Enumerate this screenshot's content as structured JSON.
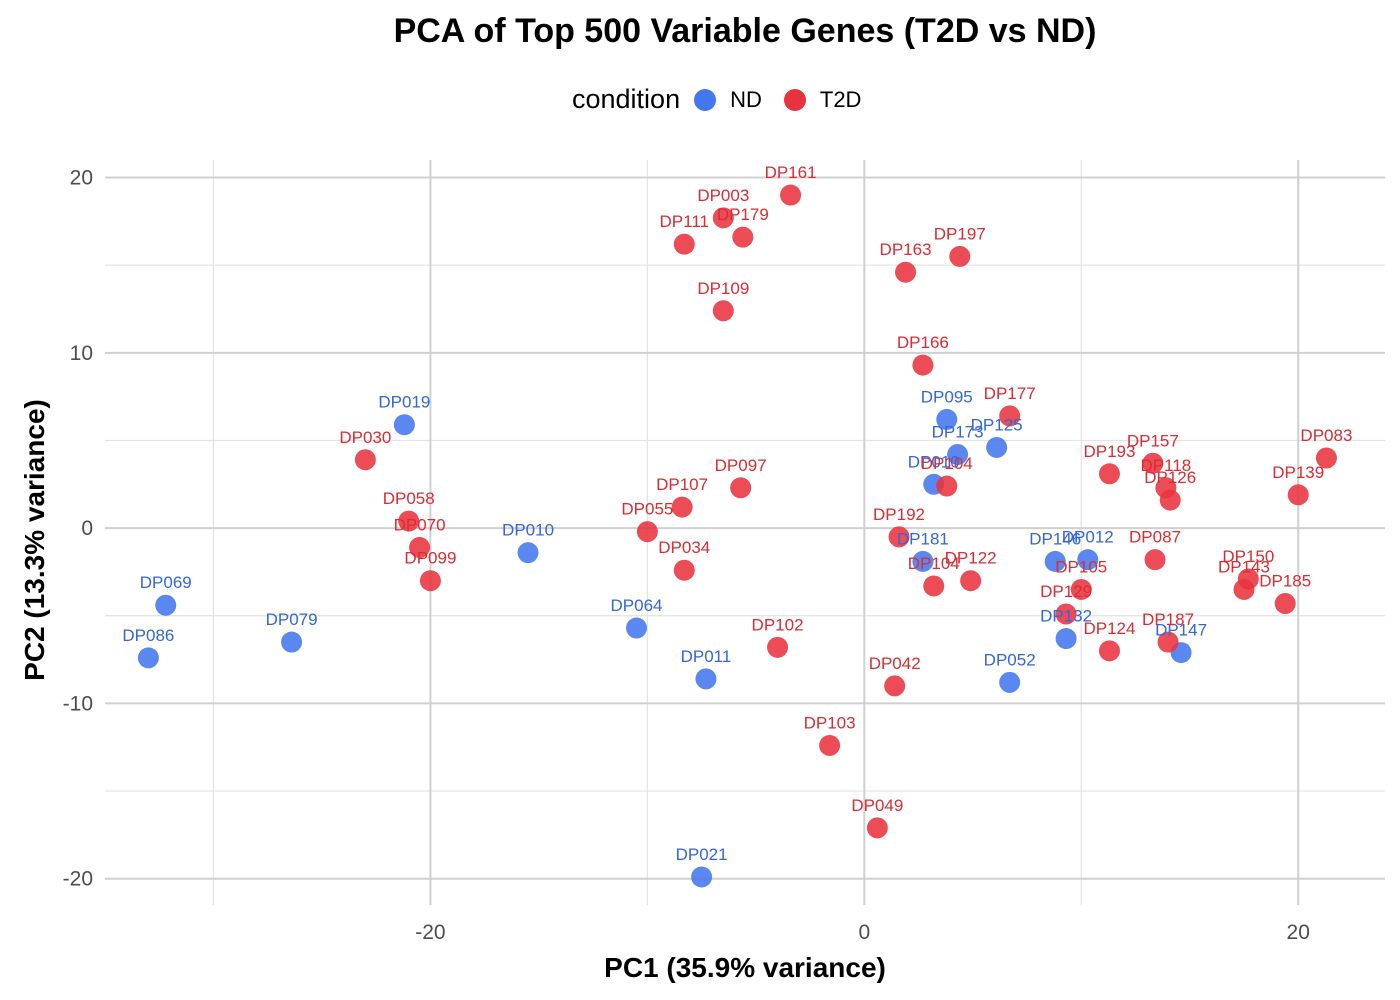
{
  "chart_data": {
    "type": "scatter",
    "title": "PCA of Top 500 Variable Genes (T2D vs ND)",
    "xlabel": "PC1 (35.9% variance)",
    "ylabel": "PC2 (13.3% variance)",
    "xlim": [
      -35.0,
      24.0
    ],
    "ylim": [
      -21.5,
      21.0
    ],
    "xticks": [
      -20,
      0,
      20
    ],
    "xtick_labels": [
      "-20",
      "0",
      "20"
    ],
    "yticks": [
      -20,
      -10,
      0,
      10,
      20
    ],
    "ytick_labels": [
      "-20",
      "-10",
      "0",
      "10",
      "20"
    ],
    "grid": true,
    "legend": {
      "title": "condition",
      "position": "top"
    },
    "colors": {
      "ND": "#4477EE",
      "T2D": "#E8333F",
      "ND_label": "#3366DD",
      "T2D_label": "#DD2B33"
    },
    "series": [
      {
        "name": "ND",
        "points": [
          {
            "label": "DP086",
            "x": -33.0,
            "y": -7.4
          },
          {
            "label": "DP069",
            "x": -32.2,
            "y": -4.4
          },
          {
            "label": "DP079",
            "x": -26.4,
            "y": -6.5
          },
          {
            "label": "DP019",
            "x": -21.2,
            "y": 5.9
          },
          {
            "label": "DP010",
            "x": -15.5,
            "y": -1.4
          },
          {
            "label": "DP064",
            "x": -10.5,
            "y": -5.7
          },
          {
            "label": "DP011",
            "x": -7.3,
            "y": -8.6
          },
          {
            "label": "DP021",
            "x": -7.5,
            "y": -19.9
          },
          {
            "label": "DP095",
            "x": 3.8,
            "y": 6.2
          },
          {
            "label": "DP173",
            "x": 4.3,
            "y": 4.2
          },
          {
            "label": "DP125",
            "x": 6.1,
            "y": 4.6
          },
          {
            "label": "DP010",
            "x": 3.2,
            "y": 2.5
          },
          {
            "label": "DP181",
            "x": 2.7,
            "y": -1.9
          },
          {
            "label": "DP146",
            "x": 8.8,
            "y": -1.9
          },
          {
            "label": "DP012",
            "x": 10.3,
            "y": -1.8
          },
          {
            "label": "DP052",
            "x": 6.7,
            "y": -8.8
          },
          {
            "label": "DP132",
            "x": 9.3,
            "y": -6.3
          },
          {
            "label": "DP147",
            "x": 14.6,
            "y": -7.1
          }
        ]
      },
      {
        "name": "T2D",
        "points": [
          {
            "label": "DP030",
            "x": -23.0,
            "y": 3.9
          },
          {
            "label": "DP058",
            "x": -21.0,
            "y": 0.4
          },
          {
            "label": "DP070",
            "x": -20.5,
            "y": -1.1
          },
          {
            "label": "DP099",
            "x": -20.0,
            "y": -3.0
          },
          {
            "label": "DP055",
            "x": -10.0,
            "y": -0.2
          },
          {
            "label": "DP107",
            "x": -8.4,
            "y": 1.2
          },
          {
            "label": "DP034",
            "x": -8.3,
            "y": -2.4
          },
          {
            "label": "DP097",
            "x": -5.7,
            "y": 2.3
          },
          {
            "label": "DP003",
            "x": -6.5,
            "y": 17.7
          },
          {
            "label": "DP111",
            "x": -8.3,
            "y": 16.2
          },
          {
            "label": "DP179",
            "x": -5.6,
            "y": 16.6
          },
          {
            "label": "DP161",
            "x": -3.4,
            "y": 19.0
          },
          {
            "label": "DP109",
            "x": -6.5,
            "y": 12.4
          },
          {
            "label": "DP163",
            "x": 1.9,
            "y": 14.6
          },
          {
            "label": "DP197",
            "x": 4.4,
            "y": 15.5
          },
          {
            "label": "DP166",
            "x": 2.7,
            "y": 9.3
          },
          {
            "label": "DP177",
            "x": 6.7,
            "y": 6.4
          },
          {
            "label": "DP104",
            "x": 3.8,
            "y": 2.4
          },
          {
            "label": "DP192",
            "x": 1.6,
            "y": -0.5
          },
          {
            "label": "DP104",
            "x": 3.2,
            "y": -3.3
          },
          {
            "label": "DP122",
            "x": 4.9,
            "y": -3.0
          },
          {
            "label": "DP102",
            "x": -4.0,
            "y": -6.8
          },
          {
            "label": "DP042",
            "x": 1.4,
            "y": -9.0
          },
          {
            "label": "DP103",
            "x": -1.6,
            "y": -12.4
          },
          {
            "label": "DP049",
            "x": 0.6,
            "y": -17.1
          },
          {
            "label": "DP105",
            "x": 10.0,
            "y": -3.5
          },
          {
            "label": "DP129",
            "x": 9.3,
            "y": -4.9
          },
          {
            "label": "DP124",
            "x": 11.3,
            "y": -7.0
          },
          {
            "label": "DP193",
            "x": 11.3,
            "y": 3.1
          },
          {
            "label": "DP157",
            "x": 13.3,
            "y": 3.7
          },
          {
            "label": "DP118",
            "x": 13.9,
            "y": 2.3
          },
          {
            "label": "DP126",
            "x": 14.1,
            "y": 1.6
          },
          {
            "label": "DP087",
            "x": 13.4,
            "y": -1.8
          },
          {
            "label": "DP187",
            "x": 14.0,
            "y": -6.5
          },
          {
            "label": "DP150",
            "x": 17.7,
            "y": -2.9
          },
          {
            "label": "DP143",
            "x": 17.5,
            "y": -3.5
          },
          {
            "label": "DP185",
            "x": 19.4,
            "y": -4.3
          },
          {
            "label": "DP139",
            "x": 20.0,
            "y": 1.9
          },
          {
            "label": "DP083",
            "x": 21.3,
            "y": 4.0
          }
        ]
      }
    ]
  }
}
